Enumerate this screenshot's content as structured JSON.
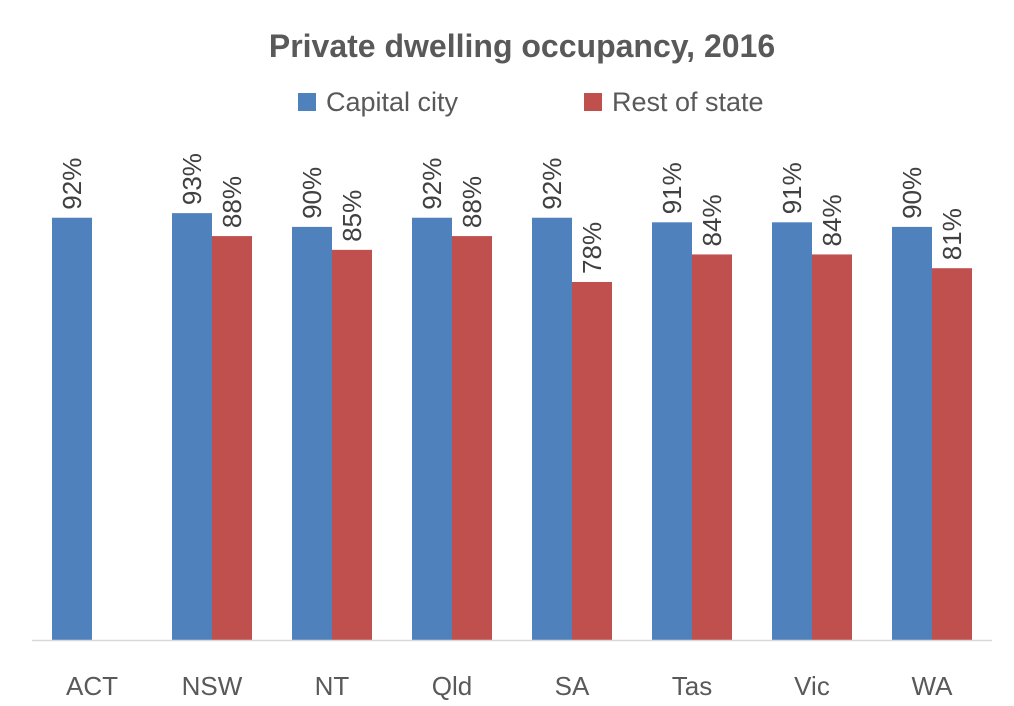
{
  "chart_data": {
    "type": "bar",
    "title": "Private dwelling occupancy, 2016",
    "xlabel": "",
    "ylabel": "",
    "ylim": [
      0,
      100
    ],
    "grid": false,
    "legend_placement": "top",
    "categories": [
      "ACT",
      "NSW",
      "NT",
      "Qld",
      "SA",
      "Tas",
      "Vic",
      "WA"
    ],
    "series": [
      {
        "name": "Capital city",
        "color": "#4F81BD",
        "values": [
          92,
          93,
          90,
          92,
          92,
          91,
          91,
          90
        ],
        "labels": [
          "92%",
          "93%",
          "90%",
          "92%",
          "92%",
          "91%",
          "91%",
          "90%"
        ]
      },
      {
        "name": "Rest of state",
        "color": "#C0504D",
        "values": [
          null,
          88,
          85,
          88,
          78,
          84,
          84,
          81
        ],
        "labels": [
          null,
          "88%",
          "85%",
          "88%",
          "78%",
          "84%",
          "84%",
          "81%"
        ]
      }
    ]
  }
}
